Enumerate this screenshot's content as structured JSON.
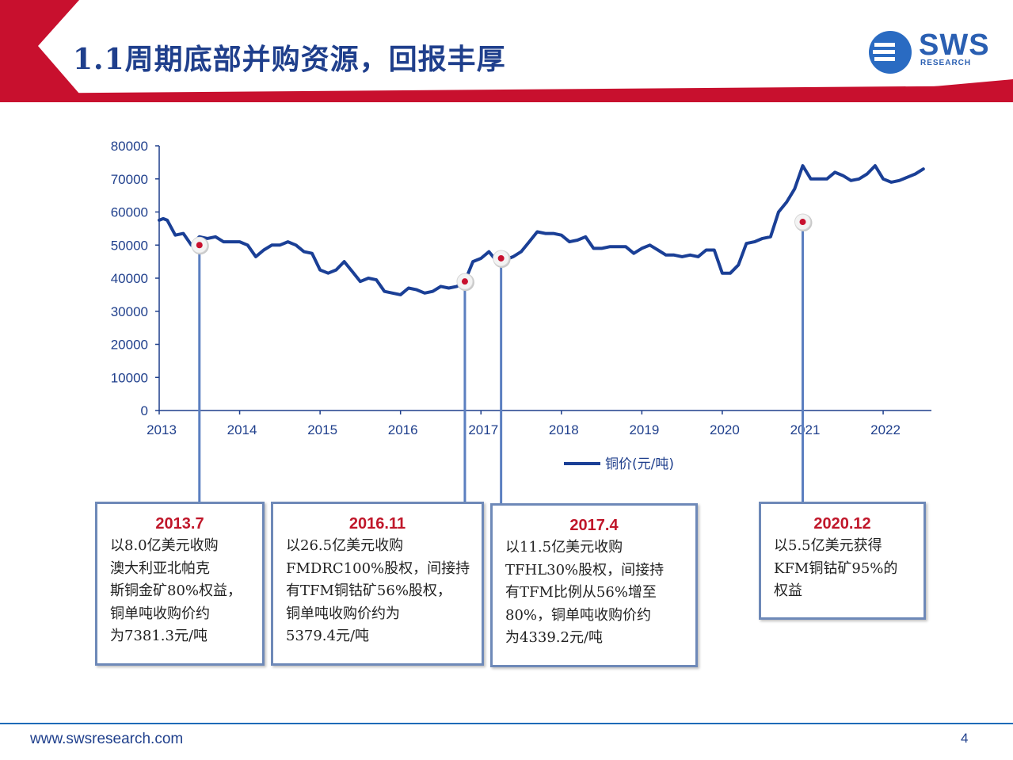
{
  "header": {
    "title": "1.1周期底部并购资源，回报丰厚",
    "logo_text": "SWS",
    "logo_sub": "RESEARCH",
    "accent_color": "#c8102e",
    "title_color": "#1f3f8c"
  },
  "chart_data": {
    "type": "line",
    "x_ticks": [
      "2013",
      "2014",
      "2015",
      "2016",
      "2017",
      "2018",
      "2019",
      "2020",
      "2021",
      "2022"
    ],
    "y_ticks": [
      "80000",
      "70000",
      "60000",
      "50000",
      "40000",
      "30000",
      "20000",
      "10000",
      "0"
    ],
    "ylim": [
      0,
      80000
    ],
    "xlim": [
      2013,
      2022.6
    ],
    "grid": false,
    "legend_position": "bottom",
    "series": [
      {
        "name": "铜价(元/吨)",
        "color": "#1a3f96",
        "x": [
          2013.0,
          2013.05,
          2013.1,
          2013.2,
          2013.3,
          2013.4,
          2013.5,
          2013.6,
          2013.7,
          2013.8,
          2013.9,
          2014.0,
          2014.1,
          2014.2,
          2014.3,
          2014.4,
          2014.5,
          2014.6,
          2014.7,
          2014.8,
          2014.9,
          2015.0,
          2015.1,
          2015.2,
          2015.3,
          2015.4,
          2015.5,
          2015.6,
          2015.7,
          2015.8,
          2015.9,
          2016.0,
          2016.1,
          2016.2,
          2016.3,
          2016.4,
          2016.5,
          2016.6,
          2016.7,
          2016.8,
          2016.9,
          2017.0,
          2017.1,
          2017.2,
          2017.3,
          2017.4,
          2017.5,
          2017.6,
          2017.7,
          2017.8,
          2017.9,
          2018.0,
          2018.1,
          2018.2,
          2018.3,
          2018.4,
          2018.5,
          2018.6,
          2018.7,
          2018.8,
          2018.9,
          2019.0,
          2019.1,
          2019.2,
          2019.3,
          2019.4,
          2019.5,
          2019.6,
          2019.7,
          2019.8,
          2019.9,
          2020.0,
          2020.1,
          2020.2,
          2020.3,
          2020.4,
          2020.5,
          2020.6,
          2020.7,
          2020.8,
          2020.9,
          2021.0,
          2021.1,
          2021.2,
          2021.3,
          2021.4,
          2021.5,
          2021.6,
          2021.7,
          2021.8,
          2021.9,
          2022.0,
          2022.1,
          2022.2,
          2022.3,
          2022.4,
          2022.5
        ],
        "y": [
          57500,
          58000,
          57500,
          53000,
          53500,
          50000,
          52500,
          52000,
          52500,
          51000,
          51000,
          51000,
          50000,
          46500,
          48500,
          50000,
          50000,
          51000,
          50000,
          48000,
          47500,
          42500,
          41500,
          42500,
          45000,
          42000,
          39000,
          40000,
          39500,
          36000,
          35500,
          35000,
          37000,
          36500,
          35500,
          36000,
          37500,
          37000,
          37500,
          39000,
          45000,
          46000,
          48000,
          45000,
          45500,
          46500,
          48000,
          51000,
          54000,
          53500,
          53500,
          53000,
          51000,
          51500,
          52500,
          49000,
          49000,
          49500,
          49500,
          49500,
          47500,
          49000,
          50000,
          48500,
          47000,
          47000,
          46500,
          47000,
          46500,
          48500,
          48500,
          41500,
          41500,
          44000,
          50500,
          51000,
          52000,
          52500,
          60000,
          63000,
          67000,
          74000,
          70000,
          70000,
          70000,
          72000,
          71000,
          69500,
          70000,
          71500,
          74000,
          70000,
          69000,
          69500,
          70500,
          71500,
          73000
        ]
      }
    ],
    "annotations": [
      {
        "x": 2013.5,
        "y": 50000,
        "label": "2013.7"
      },
      {
        "x": 2016.8,
        "y": 39000,
        "label": "2016.11"
      },
      {
        "x": 2017.25,
        "y": 46000,
        "label": "2017.4"
      },
      {
        "x": 2021.0,
        "y": 57000,
        "label": "2020.12"
      }
    ]
  },
  "callouts": [
    {
      "date": "2013.7",
      "text": "以8.0亿美元收购\n澳大利亚北帕克\n斯铜金矿80%权益，\n铜单吨收购价约\n为7381.3元/吨"
    },
    {
      "date": "2016.11",
      "text": "以26.5亿美元收购\nFMDRC100%股权，间接持\n有TFM铜钴矿56%股权，\n铜单吨收购价约为\n5379.4元/吨"
    },
    {
      "date": "2017.4",
      "text": "以11.5亿美元收购\nTFHL30%股权，间接持\n有TFM比例从56%增至\n80%，铜单吨收购价约\n为4339.2元/吨"
    },
    {
      "date": "2020.12",
      "text": "以5.5亿美元获得\nKFM铜钴矿95%的\n权益"
    }
  ],
  "footer": {
    "url": "www.swsresearch.com",
    "page": "4"
  }
}
